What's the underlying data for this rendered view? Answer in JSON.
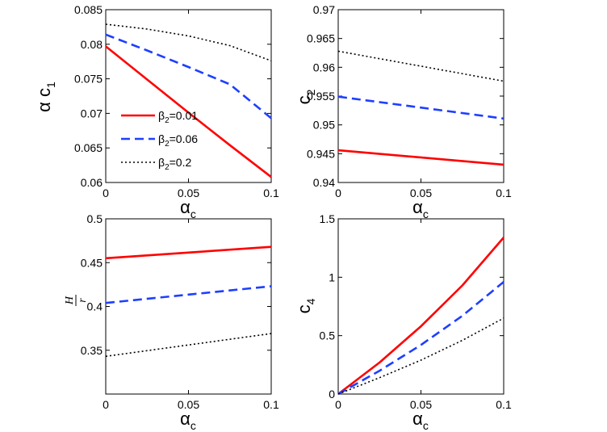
{
  "chart_data": [
    {
      "type": "line",
      "id": "c1",
      "ylabel": {
        "prefix": "α c",
        "sub": "1"
      },
      "xlabel": {
        "main": "α",
        "sub": "c"
      },
      "xlim": [
        0,
        0.1
      ],
      "ylim": [
        0.06,
        0.085
      ],
      "xticks": [
        "0",
        "0.05",
        "0.1"
      ],
      "yticks": [
        "0.06",
        "0.065",
        "0.07",
        "0.075",
        "0.08",
        "0.085"
      ],
      "series": [
        {
          "name": "β2=0.01",
          "style": "solid",
          "x": [
            0,
            0.025,
            0.05,
            0.075,
            0.1
          ],
          "y": [
            0.0797,
            0.0749,
            0.0701,
            0.0654,
            0.0608
          ]
        },
        {
          "name": "β2=0.06",
          "style": "dashed",
          "x": [
            0,
            0.025,
            0.05,
            0.075,
            0.1
          ],
          "y": [
            0.0814,
            0.0791,
            0.0767,
            0.0742,
            0.0693
          ]
        },
        {
          "name": "β2=0.2",
          "style": "dotted",
          "x": [
            0,
            0.025,
            0.05,
            0.075,
            0.1
          ],
          "y": [
            0.0829,
            0.0822,
            0.0812,
            0.0798,
            0.0776
          ]
        }
      ],
      "legend": {
        "position": "lower-left",
        "entries": [
          {
            "prefix": "β",
            "sub": "2",
            "suffix": "=0.01"
          },
          {
            "prefix": "β",
            "sub": "2",
            "suffix": "=0.06"
          },
          {
            "prefix": "β",
            "sub": "2",
            "suffix": "=0.2"
          }
        ]
      }
    },
    {
      "type": "line",
      "id": "c2",
      "ylabel": {
        "prefix": "c",
        "sub": "2"
      },
      "xlabel": {
        "main": "α",
        "sub": "c"
      },
      "xlim": [
        0,
        0.1
      ],
      "ylim": [
        0.94,
        0.97
      ],
      "xticks": [
        "0",
        "0.05",
        "0.1"
      ],
      "yticks": [
        "0.94",
        "0.945",
        "0.95",
        "0.955",
        "0.96",
        "0.965",
        "0.97"
      ],
      "series": [
        {
          "name": "β2=0.01",
          "style": "solid",
          "x": [
            0,
            0.1
          ],
          "y": [
            0.9456,
            0.9431
          ]
        },
        {
          "name": "β2=0.06",
          "style": "dashed",
          "x": [
            0,
            0.1
          ],
          "y": [
            0.9549,
            0.9511
          ]
        },
        {
          "name": "β2=0.2",
          "style": "dotted",
          "x": [
            0,
            0.1
          ],
          "y": [
            0.9628,
            0.9576
          ]
        }
      ]
    },
    {
      "type": "line",
      "id": "hr",
      "ylabel": {
        "num": "H",
        "den": "r"
      },
      "xlabel": {
        "main": "α",
        "sub": "c"
      },
      "xlim": [
        0,
        0.1
      ],
      "ylim": [
        0.3,
        0.5
      ],
      "xticks": [
        "0",
        "0.05",
        "0.1"
      ],
      "yticks": [
        "0.35",
        "0.4",
        "0.45",
        "0.5"
      ],
      "series": [
        {
          "name": "β2=0.01",
          "style": "solid",
          "x": [
            0,
            0.1
          ],
          "y": [
            0.455,
            0.468
          ]
        },
        {
          "name": "β2=0.06",
          "style": "dashed",
          "x": [
            0,
            0.1
          ],
          "y": [
            0.404,
            0.423
          ]
        },
        {
          "name": "β2=0.2",
          "style": "dotted",
          "x": [
            0,
            0.1
          ],
          "y": [
            0.343,
            0.369
          ]
        }
      ]
    },
    {
      "type": "line",
      "id": "c4",
      "ylabel": {
        "prefix": "c",
        "sub": "4"
      },
      "xlabel": {
        "main": "α",
        "sub": "c"
      },
      "xlim": [
        0,
        0.1
      ],
      "ylim": [
        0,
        1.5
      ],
      "xticks": [
        "0",
        "0.05",
        "0.1"
      ],
      "yticks": [
        "0",
        "0.5",
        "1",
        "1.5"
      ],
      "series": [
        {
          "name": "β2=0.01",
          "style": "solid",
          "x": [
            0,
            0.025,
            0.05,
            0.075,
            0.1
          ],
          "y": [
            0,
            0.27,
            0.58,
            0.93,
            1.34
          ]
        },
        {
          "name": "β2=0.06",
          "style": "dashed",
          "x": [
            0,
            0.025,
            0.05,
            0.075,
            0.1
          ],
          "y": [
            0,
            0.2,
            0.42,
            0.67,
            0.96
          ]
        },
        {
          "name": "β2=0.2",
          "style": "dotted",
          "x": [
            0,
            0.025,
            0.05,
            0.075,
            0.1
          ],
          "y": [
            0,
            0.14,
            0.29,
            0.46,
            0.65
          ]
        }
      ]
    }
  ],
  "colors": {
    "solid": "#ff0000",
    "dashed": "#1e3fff",
    "dotted": "#000000"
  }
}
